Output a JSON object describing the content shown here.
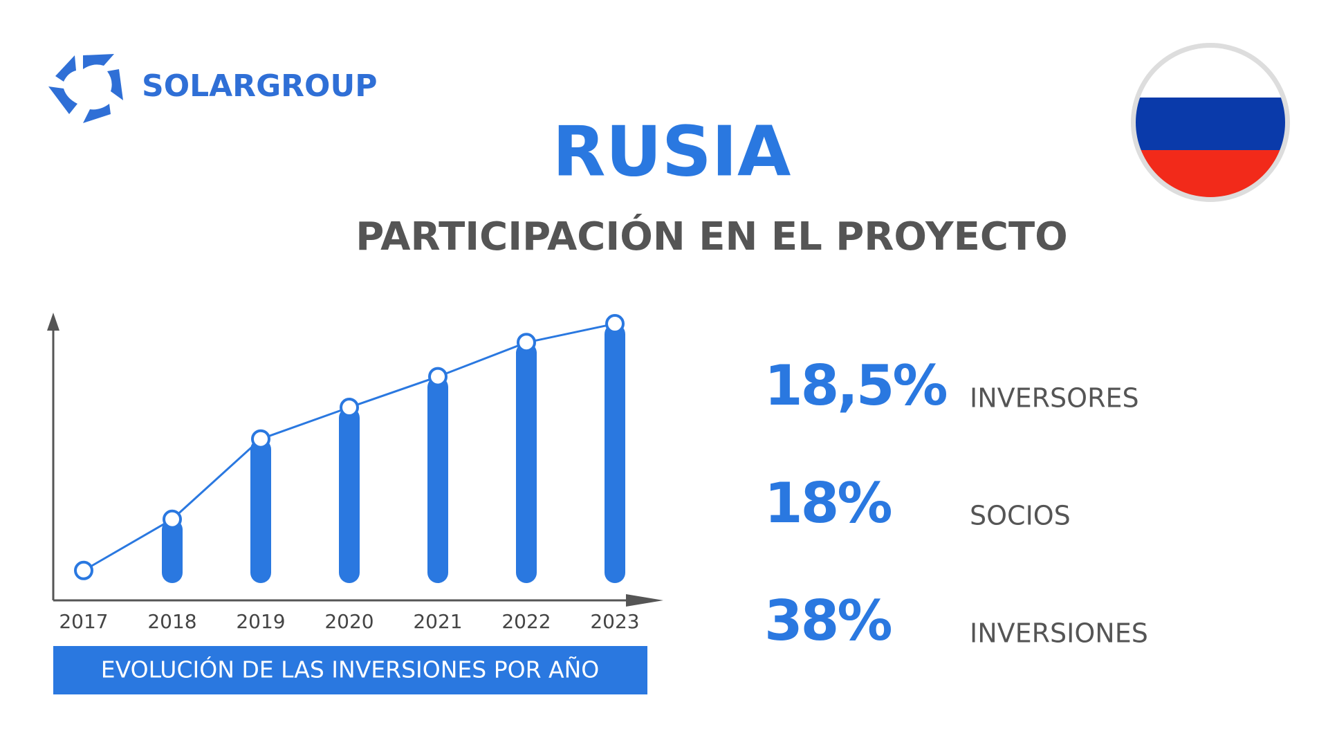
{
  "header": {
    "brand": "SOLARGROUP",
    "title": "RUSIA",
    "subtitle": "PARTICIPACIÓN EN EL PROYECTO"
  },
  "chart_data": {
    "type": "bar-line",
    "caption": "EVOLUCIÓN  DE LAS INVERSIONES POR AÑO",
    "categories": [
      "2017",
      "2018",
      "2019",
      "2020",
      "2021",
      "2022",
      "2023"
    ],
    "values": [
      35,
      95,
      189,
      226,
      262,
      302,
      324
    ],
    "color": "#2a78e0",
    "ylim": [
      0,
      337
    ]
  },
  "stats": [
    {
      "value": "18,5%",
      "label": "INVERSORES"
    },
    {
      "value": "18%",
      "label": "SOCIOS"
    },
    {
      "value": "38%",
      "label": "INVERSIONES"
    }
  ]
}
